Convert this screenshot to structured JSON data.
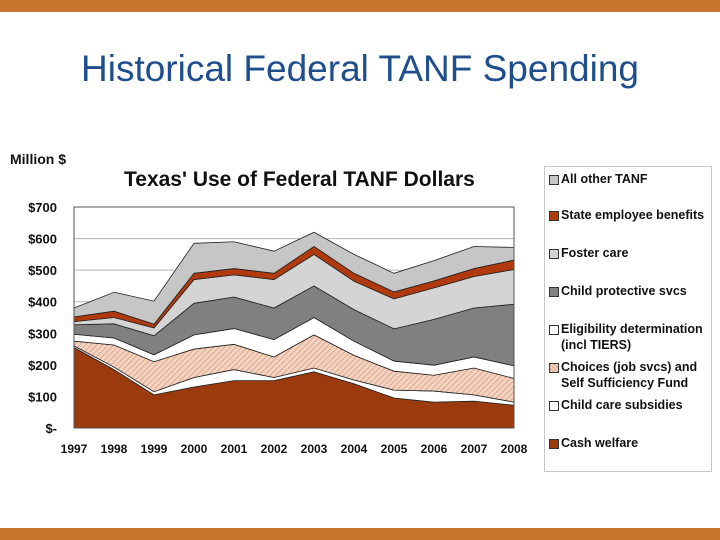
{
  "slide": {
    "title": "Historical Federal TANF Spending",
    "accent_color": "#c8732e",
    "title_color": "#1f4e8c"
  },
  "chart_data": {
    "type": "area",
    "stacked": true,
    "title": "Texas' Use of Federal TANF Dollars",
    "unit_label": "Million $",
    "ylim": [
      0,
      700
    ],
    "grid": true,
    "legend_position": "right",
    "y_ticks": [
      {
        "value": 0,
        "label": "$-"
      },
      {
        "value": 100,
        "label": "$100"
      },
      {
        "value": 200,
        "label": "$200"
      },
      {
        "value": 300,
        "label": "$300"
      },
      {
        "value": 400,
        "label": "$400"
      },
      {
        "value": 500,
        "label": "$500"
      },
      {
        "value": 600,
        "label": "$600"
      },
      {
        "value": 700,
        "label": "$700"
      }
    ],
    "categories": [
      "1997",
      "1998",
      "1999",
      "2000",
      "2001",
      "2002",
      "2003",
      "2004",
      "2005",
      "2006",
      "2007",
      "2008"
    ],
    "series": [
      {
        "name": "Cash welfare",
        "color": "#9b3a0c",
        "pattern": "solid",
        "values": [
          255,
          185,
          105,
          130,
          150,
          150,
          178,
          140,
          95,
          82,
          85,
          72
        ]
      },
      {
        "name": "Child care subsidies",
        "color": "#ffffff",
        "pattern": "solid",
        "values": [
          5,
          8,
          10,
          30,
          35,
          10,
          12,
          12,
          25,
          35,
          20,
          10
        ]
      },
      {
        "name": "Choices (job svcs) and Self Sufficiency Fund",
        "color": "#e9b9a0",
        "pattern": "hatch",
        "values": [
          15,
          70,
          95,
          90,
          80,
          65,
          105,
          78,
          60,
          50,
          85,
          75
        ]
      },
      {
        "name": "Eligibility determination (incl TIERS)",
        "color": "#ffffff",
        "pattern": "solid",
        "values": [
          22,
          22,
          22,
          45,
          50,
          55,
          55,
          45,
          32,
          32,
          35,
          40
        ]
      },
      {
        "name": "Child protective svcs",
        "color": "#808080",
        "pattern": "solid",
        "values": [
          30,
          45,
          60,
          100,
          100,
          100,
          100,
          100,
          102,
          145,
          155,
          195
        ]
      },
      {
        "name": "Foster care",
        "color": "#d4d4d4",
        "pattern": "solid",
        "values": [
          10,
          20,
          25,
          75,
          70,
          90,
          100,
          90,
          95,
          100,
          100,
          110
        ]
      },
      {
        "name": "State employee benefits",
        "color": "#b03a0e",
        "pattern": "solid",
        "values": [
          15,
          20,
          12,
          20,
          20,
          20,
          25,
          25,
          22,
          22,
          25,
          30
        ]
      },
      {
        "name": "All other TANF",
        "color": "#c6c6c6",
        "pattern": "solid",
        "values": [
          28,
          60,
          73,
          95,
          85,
          70,
          45,
          60,
          59,
          64,
          70,
          40
        ]
      }
    ],
    "legend_order": [
      "All other TANF",
      "State employee benefits",
      "Foster care",
      "Child protective svcs",
      "Eligibility determination (incl TIERS)",
      "Choices (job svcs) and Self Sufficiency Fund",
      "Child care subsidies",
      "Cash welfare"
    ]
  }
}
